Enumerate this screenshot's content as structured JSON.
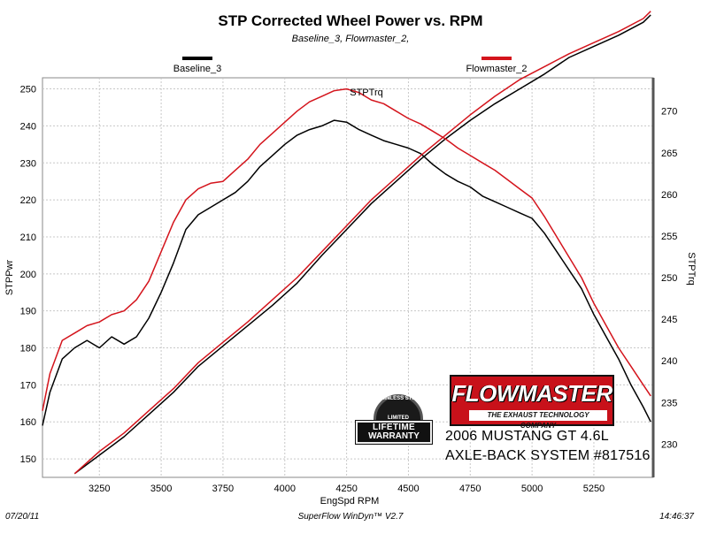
{
  "chart_data": {
    "type": "line",
    "title": "STP Corrected Wheel Power vs. RPM",
    "subtitle": "Baseline_3, Flowmaster_2,",
    "xlabel": "EngSpd  RPM",
    "ylabel_left": "STPPwr",
    "ylabel_right": "STPTrq",
    "annotation": "STPTrq",
    "xlim": [
      3020,
      5490
    ],
    "ylim_left": [
      145,
      253
    ],
    "ylim_right": [
      226,
      274
    ],
    "x_ticks": [
      "3250",
      "3500",
      "3750",
      "4000",
      "4250",
      "4500",
      "4750",
      "5000",
      "5250"
    ],
    "y_ticks_left": [
      "150",
      "160",
      "170",
      "180",
      "190",
      "200",
      "210",
      "220",
      "230",
      "240",
      "250"
    ],
    "y_ticks_right": [
      "230",
      "235",
      "240",
      "245",
      "250",
      "255",
      "260",
      "265",
      "270"
    ],
    "grid": true,
    "legend": "top",
    "series": [
      {
        "name": "Baseline_3",
        "color": "#000000",
        "power": {
          "x": [
            3150,
            3250,
            3350,
            3450,
            3550,
            3650,
            3750,
            3850,
            3950,
            4050,
            4150,
            4250,
            4350,
            4450,
            4550,
            4650,
            4750,
            4850,
            4950,
            5050,
            5150,
            5250,
            5350,
            5450,
            5480
          ],
          "y": [
            146,
            151,
            156,
            162,
            168,
            175,
            180.5,
            186,
            191.5,
            197.5,
            205,
            212,
            219,
            225,
            231,
            236.5,
            241.5,
            246,
            250,
            254,
            258.5,
            261.5,
            264.5,
            268,
            270
          ]
        },
        "torque": {
          "x": [
            3020,
            3050,
            3100,
            3150,
            3200,
            3250,
            3300,
            3350,
            3400,
            3450,
            3500,
            3550,
            3600,
            3650,
            3700,
            3750,
            3800,
            3850,
            3900,
            3950,
            4000,
            4050,
            4100,
            4150,
            4200,
            4250,
            4300,
            4350,
            4400,
            4450,
            4500,
            4550,
            4600,
            4650,
            4700,
            4750,
            4800,
            4850,
            4900,
            4950,
            5000,
            5050,
            5100,
            5150,
            5200,
            5250,
            5300,
            5350,
            5400,
            5450,
            5480
          ],
          "y": [
            159,
            168,
            177,
            180,
            182,
            180,
            183,
            181,
            183,
            188,
            195,
            203,
            212,
            216,
            218,
            220,
            222,
            225,
            229,
            232,
            235,
            237.5,
            239,
            240,
            241.5,
            241,
            239,
            237.5,
            236,
            235,
            234,
            232.5,
            229.5,
            227,
            225,
            223.5,
            221,
            219.5,
            218,
            216.5,
            215,
            211,
            206,
            201,
            196,
            189,
            183,
            177,
            170,
            164,
            160
          ]
        }
      },
      {
        "name": "Flowmaster_2",
        "color": "#d4141c",
        "power": {
          "x": [
            3150,
            3250,
            3350,
            3450,
            3550,
            3650,
            3750,
            3850,
            3950,
            4050,
            4150,
            4250,
            4350,
            4450,
            4550,
            4650,
            4750,
            4850,
            4950,
            5050,
            5150,
            5250,
            5350,
            5450,
            5480
          ],
          "y": [
            146,
            152,
            157,
            163,
            169,
            176,
            181.5,
            187,
            193,
            199,
            206,
            213,
            220,
            226,
            232,
            237.5,
            243,
            248,
            252.5,
            256,
            259.5,
            262.5,
            265.5,
            269,
            271
          ]
        },
        "torque": {
          "x": [
            3020,
            3050,
            3100,
            3150,
            3200,
            3250,
            3300,
            3350,
            3400,
            3450,
            3500,
            3550,
            3600,
            3650,
            3700,
            3750,
            3800,
            3850,
            3900,
            3950,
            4000,
            4050,
            4100,
            4150,
            4200,
            4250,
            4300,
            4350,
            4400,
            4450,
            4500,
            4550,
            4600,
            4650,
            4700,
            4750,
            4800,
            4850,
            4900,
            4950,
            5000,
            5050,
            5100,
            5150,
            5200,
            5250,
            5300,
            5350,
            5400,
            5450,
            5480
          ],
          "y": [
            163,
            173,
            182,
            184,
            186,
            187,
            189,
            190,
            193,
            198,
            206,
            214,
            220,
            223,
            224.5,
            225,
            228,
            231,
            235,
            238,
            241,
            244,
            246.5,
            248,
            249.5,
            250,
            249,
            247,
            246,
            244,
            242,
            240.5,
            238.5,
            236.5,
            234,
            232,
            230,
            228,
            225.5,
            223,
            220.5,
            215.5,
            210,
            204.5,
            199,
            192,
            186,
            180,
            175,
            170,
            167
          ]
        }
      }
    ]
  },
  "brand": {
    "name": "FLOWMASTER",
    "tagline": "THE EXHAUST TECHNOLOGY COMPANY"
  },
  "badge": {
    "ring_text": "STAINLESS STEEL",
    "limited": "LIMITED",
    "line1": "LIFETIME",
    "line2": "WARRANTY"
  },
  "caption": {
    "line1": "2006 MUSTANG GT 4.6L",
    "line2": "AXLE-BACK SYSTEM #817516"
  },
  "footer": {
    "date": "07/20/11",
    "software": "SuperFlow WinDyn™ V2.7",
    "time": "14:46:37"
  }
}
